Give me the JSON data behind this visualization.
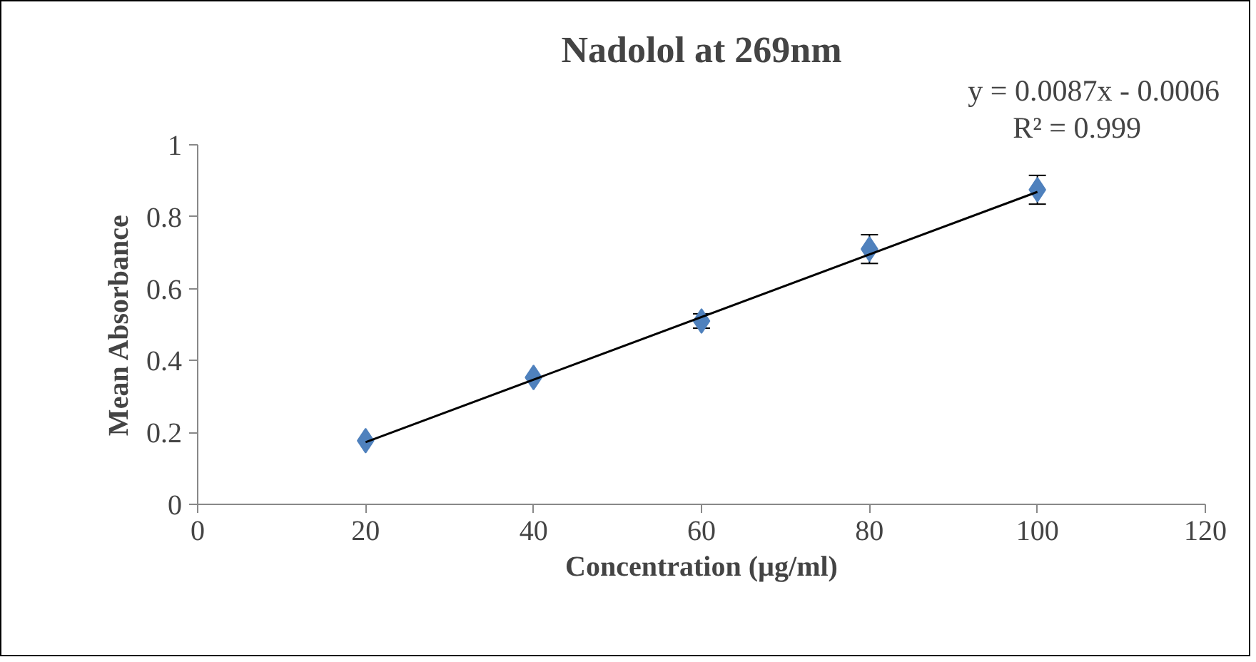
{
  "chart_data": {
    "type": "scatter",
    "title": "Nadolol at 269nm",
    "xlabel": "Concentration (µg/ml)",
    "ylabel": "Mean Absorbance",
    "annotations": [
      "y = 0.0087x - 0.0006",
      "R² = 0.999"
    ],
    "xlim": [
      0,
      120
    ],
    "xticks": [
      0,
      20,
      40,
      60,
      80,
      100,
      120
    ],
    "ylim": [
      0,
      1
    ],
    "yticks": [
      0,
      0.2,
      0.4,
      0.6,
      0.8,
      1
    ],
    "grid": false,
    "series": [
      {
        "color": "#4f81bd",
        "marker": "diamond",
        "x": [
          20,
          40,
          60,
          80,
          100
        ],
        "values": [
          0.177,
          0.353,
          0.51,
          0.71,
          0.875
        ],
        "errors": [
          null,
          null,
          0.02,
          0.04,
          0.04
        ]
      },
      {
        "type": "line",
        "color": "#000000",
        "x": [
          20,
          100
        ],
        "values": [
          0.173,
          0.869
        ],
        "line_style": "solid"
      }
    ]
  }
}
